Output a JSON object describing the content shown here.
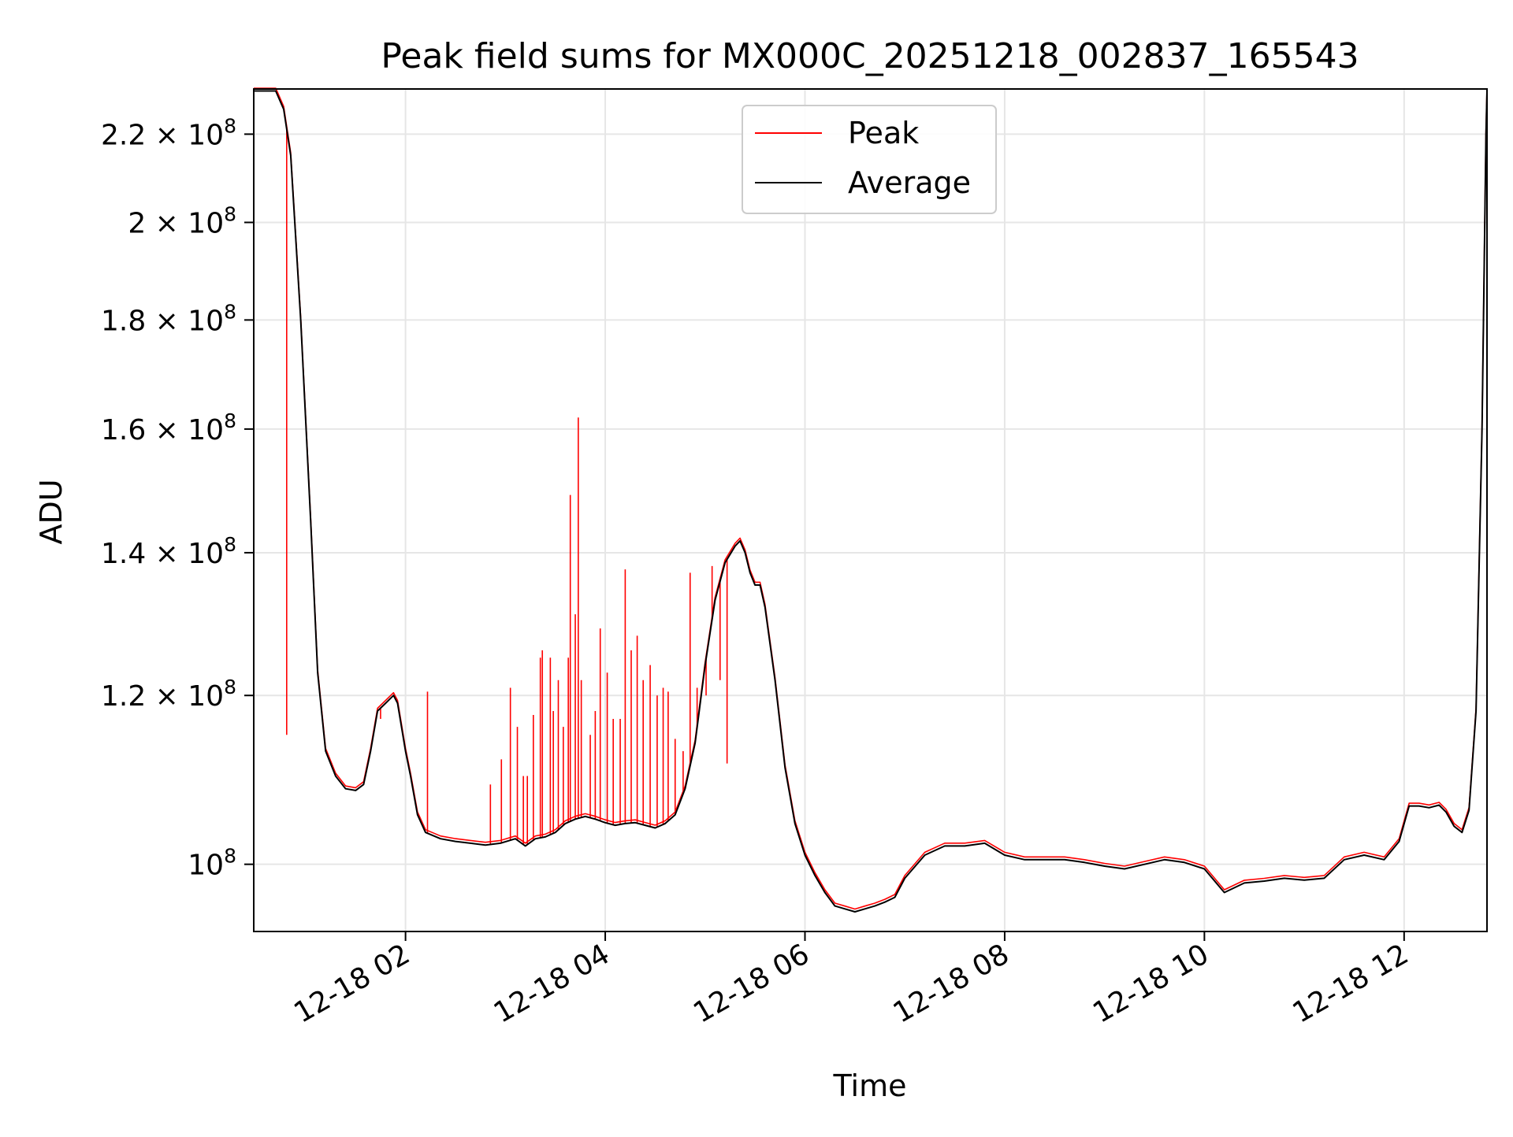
{
  "chart_data": {
    "type": "line",
    "title": "Peak field sums for MX000C_20251218_002837_165543",
    "xlabel": "Time",
    "ylabel": "ADU",
    "yscale": "log",
    "grid": true,
    "xlim_hours": [
      0.48,
      12.83
    ],
    "ylim": [
      93000000,
      231000000
    ],
    "x_ticks": [
      {
        "hour": 2,
        "label": "12-18 02"
      },
      {
        "hour": 4,
        "label": "12-18 04"
      },
      {
        "hour": 6,
        "label": "12-18 06"
      },
      {
        "hour": 8,
        "label": "12-18 08"
      },
      {
        "hour": 10,
        "label": "12-18 10"
      },
      {
        "hour": 12,
        "label": "12-18 12"
      }
    ],
    "y_ticks": [
      {
        "value": 100000000,
        "mantissa": "10",
        "exp": "8"
      },
      {
        "value": 120000000,
        "mantissa": "1.2 × 10",
        "exp": "8"
      },
      {
        "value": 140000000,
        "mantissa": "1.4 × 10",
        "exp": "8"
      },
      {
        "value": 160000000,
        "mantissa": "1.6 × 10",
        "exp": "8"
      },
      {
        "value": 180000000,
        "mantissa": "1.8 × 10",
        "exp": "8"
      },
      {
        "value": 200000000,
        "mantissa": "2 × 10",
        "exp": "8"
      },
      {
        "value": 220000000,
        "mantissa": "2.2 × 10",
        "exp": "8"
      }
    ],
    "legend": {
      "placement": "top-center"
    },
    "series": [
      {
        "name": "Peak",
        "color": "#ff0000",
        "spikes": [
          [
            0.81,
            115000000
          ],
          [
            1.75,
            117000000
          ],
          [
            2.22,
            120500000
          ],
          [
            2.85,
            109000000
          ],
          [
            2.96,
            112000000
          ],
          [
            3.05,
            121000000
          ],
          [
            3.12,
            116000000
          ],
          [
            3.18,
            110000000
          ],
          [
            3.22,
            110000000
          ],
          [
            3.28,
            117500000
          ],
          [
            3.35,
            125000000
          ],
          [
            3.37,
            126000000
          ],
          [
            3.45,
            125000000
          ],
          [
            3.48,
            118000000
          ],
          [
            3.53,
            122000000
          ],
          [
            3.58,
            116000000
          ],
          [
            3.63,
            125000000
          ],
          [
            3.65,
            149000000
          ],
          [
            3.7,
            131000000
          ],
          [
            3.73,
            162000000
          ],
          [
            3.76,
            122000000
          ],
          [
            3.85,
            115000000
          ],
          [
            3.9,
            118000000
          ],
          [
            3.95,
            129000000
          ],
          [
            4.02,
            123000000
          ],
          [
            4.08,
            117000000
          ],
          [
            4.15,
            117000000
          ],
          [
            4.2,
            137500000
          ],
          [
            4.26,
            126000000
          ],
          [
            4.32,
            128000000
          ],
          [
            4.38,
            122000000
          ],
          [
            4.45,
            124000000
          ],
          [
            4.52,
            120000000
          ],
          [
            4.58,
            121000000
          ],
          [
            4.63,
            120500000
          ],
          [
            4.7,
            114500000
          ],
          [
            4.78,
            113000000
          ],
          [
            4.85,
            137000000
          ],
          [
            4.92,
            121000000
          ],
          [
            5.01,
            120000000
          ],
          [
            5.07,
            138000000
          ],
          [
            5.15,
            122000000
          ],
          [
            5.22,
            111500000
          ]
        ]
      },
      {
        "name": "Average",
        "color": "#000000",
        "values": [
          [
            0.48,
            230500000
          ],
          [
            0.7,
            230500000
          ],
          [
            0.78,
            226000000
          ],
          [
            0.85,
            215000000
          ],
          [
            0.95,
            180000000
          ],
          [
            1.05,
            145000000
          ],
          [
            1.12,
            123000000
          ],
          [
            1.2,
            113000000
          ],
          [
            1.3,
            110000000
          ],
          [
            1.4,
            108500000
          ],
          [
            1.5,
            108300000
          ],
          [
            1.58,
            109000000
          ],
          [
            1.65,
            113000000
          ],
          [
            1.72,
            118000000
          ],
          [
            1.8,
            119000000
          ],
          [
            1.88,
            120000000
          ],
          [
            1.92,
            119000000
          ],
          [
            2.0,
            113000000
          ],
          [
            2.05,
            110000000
          ],
          [
            2.12,
            105500000
          ],
          [
            2.2,
            103500000
          ],
          [
            2.35,
            102800000
          ],
          [
            2.5,
            102500000
          ],
          [
            2.65,
            102300000
          ],
          [
            2.8,
            102100000
          ],
          [
            2.95,
            102300000
          ],
          [
            3.1,
            102800000
          ],
          [
            3.2,
            102000000
          ],
          [
            3.3,
            102800000
          ],
          [
            3.4,
            103000000
          ],
          [
            3.5,
            103500000
          ],
          [
            3.6,
            104500000
          ],
          [
            3.7,
            105000000
          ],
          [
            3.8,
            105300000
          ],
          [
            3.9,
            105000000
          ],
          [
            4.0,
            104600000
          ],
          [
            4.1,
            104300000
          ],
          [
            4.2,
            104500000
          ],
          [
            4.3,
            104600000
          ],
          [
            4.4,
            104300000
          ],
          [
            4.5,
            104000000
          ],
          [
            4.6,
            104500000
          ],
          [
            4.7,
            105500000
          ],
          [
            4.8,
            108500000
          ],
          [
            4.9,
            114000000
          ],
          [
            5.0,
            124000000
          ],
          [
            5.1,
            133000000
          ],
          [
            5.2,
            138500000
          ],
          [
            5.3,
            141000000
          ],
          [
            5.35,
            141800000
          ],
          [
            5.4,
            140000000
          ],
          [
            5.45,
            137000000
          ],
          [
            5.5,
            135200000
          ],
          [
            5.55,
            135200000
          ],
          [
            5.6,
            132000000
          ],
          [
            5.7,
            122000000
          ],
          [
            5.8,
            111000000
          ],
          [
            5.9,
            104500000
          ],
          [
            6.0,
            101000000
          ],
          [
            6.1,
            98800000
          ],
          [
            6.2,
            97000000
          ],
          [
            6.3,
            95600000
          ],
          [
            6.4,
            95300000
          ],
          [
            6.5,
            95000000
          ],
          [
            6.6,
            95300000
          ],
          [
            6.7,
            95600000
          ],
          [
            6.8,
            96000000
          ],
          [
            6.9,
            96500000
          ],
          [
            7.0,
            98500000
          ],
          [
            7.2,
            101000000
          ],
          [
            7.4,
            102000000
          ],
          [
            7.6,
            102000000
          ],
          [
            7.8,
            102300000
          ],
          [
            8.0,
            101000000
          ],
          [
            8.2,
            100500000
          ],
          [
            8.4,
            100500000
          ],
          [
            8.6,
            100500000
          ],
          [
            8.8,
            100200000
          ],
          [
            9.0,
            99800000
          ],
          [
            9.2,
            99500000
          ],
          [
            9.4,
            100000000
          ],
          [
            9.6,
            100500000
          ],
          [
            9.8,
            100200000
          ],
          [
            10.0,
            99500000
          ],
          [
            10.2,
            97000000
          ],
          [
            10.4,
            98000000
          ],
          [
            10.6,
            98200000
          ],
          [
            10.8,
            98500000
          ],
          [
            11.0,
            98300000
          ],
          [
            11.2,
            98500000
          ],
          [
            11.4,
            100500000
          ],
          [
            11.6,
            101000000
          ],
          [
            11.8,
            100500000
          ],
          [
            11.95,
            102500000
          ],
          [
            12.05,
            106500000
          ],
          [
            12.15,
            106500000
          ],
          [
            12.25,
            106300000
          ],
          [
            12.35,
            106600000
          ],
          [
            12.42,
            105800000
          ],
          [
            12.5,
            104200000
          ],
          [
            12.58,
            103500000
          ],
          [
            12.65,
            106000000
          ],
          [
            12.72,
            118000000
          ],
          [
            12.78,
            160000000
          ],
          [
            12.82,
            220000000
          ],
          [
            12.83,
            230500000
          ]
        ]
      }
    ]
  }
}
